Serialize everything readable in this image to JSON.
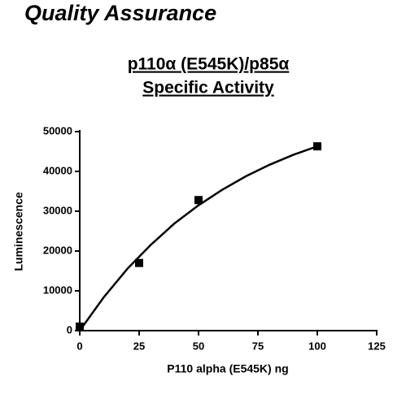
{
  "header": {
    "title": "Quality Assurance"
  },
  "chart_data": {
    "type": "scatter",
    "title": [
      "p110α (E545K)/p85α",
      "Specific Activity"
    ],
    "x_label": "P110 alpha (E545K) ng",
    "y_label": "Luminescence",
    "xlim": [
      0,
      125
    ],
    "xticks": [
      0,
      25,
      50,
      75,
      100,
      125
    ],
    "ylim": [
      0,
      50000
    ],
    "yticks": [
      0,
      10000,
      20000,
      30000,
      40000,
      50000
    ],
    "series": [
      {
        "type": "scatter",
        "color": "#000000",
        "x": [
          0,
          25,
          50,
          100
        ],
        "values": [
          1000,
          17000,
          32800,
          46300
        ]
      },
      {
        "type": "line",
        "color": "#000000",
        "x": [
          0,
          10,
          20,
          30,
          40,
          50,
          60,
          70,
          80,
          90,
          100
        ],
        "values": [
          0,
          8300,
          15500,
          21600,
          27000,
          31500,
          35400,
          38800,
          41700,
          44200,
          46300
        ]
      }
    ]
  }
}
